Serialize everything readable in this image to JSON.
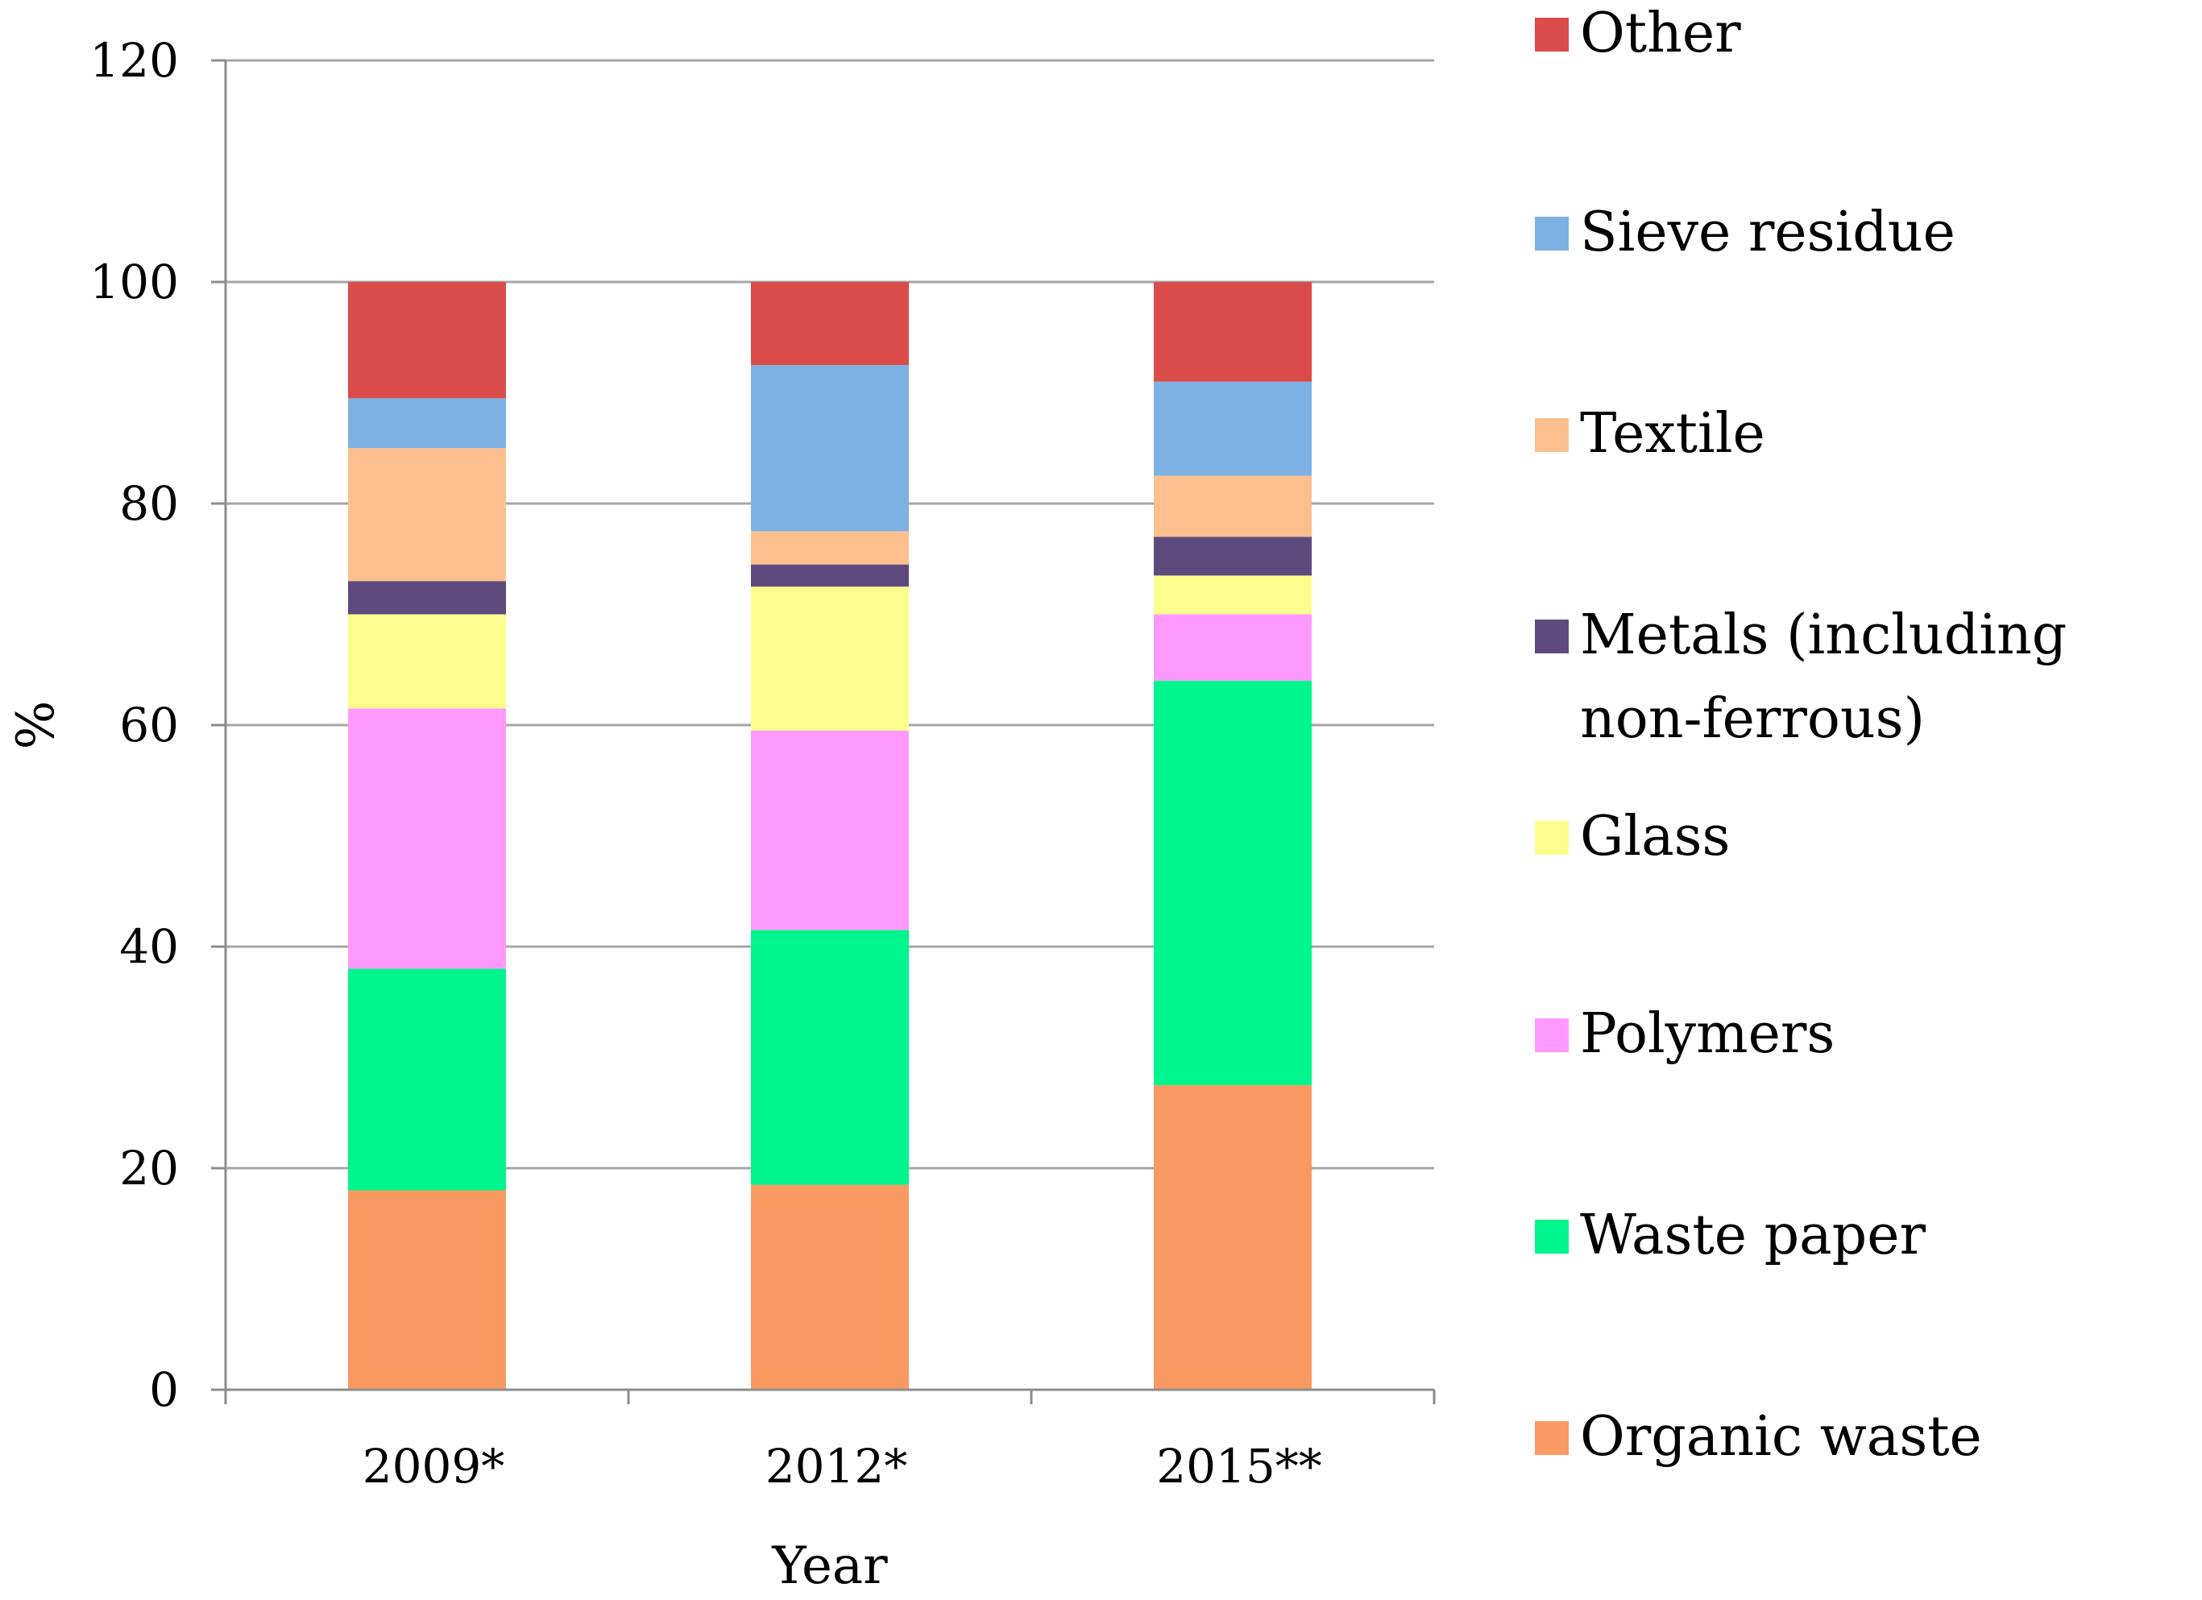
{
  "chart_data": {
    "type": "stacked-bar",
    "categories": [
      "2009*",
      "2012*",
      "2015**"
    ],
    "series": [
      {
        "name": "Organic waste",
        "color": "#F99A62",
        "values": [
          18.0,
          18.5,
          27.5
        ]
      },
      {
        "name": "Waste paper",
        "color": "#00F58C",
        "values": [
          20.0,
          23.0,
          36.5
        ]
      },
      {
        "name": "Polymers",
        "color": "#FF99FF",
        "values": [
          23.5,
          18.0,
          6.0
        ]
      },
      {
        "name": "Glass",
        "color": "#FCFD8C",
        "values": [
          8.5,
          13.0,
          3.5
        ]
      },
      {
        "name": "Metals (including non-ferrous)",
        "color": "#5E4B7E",
        "values": [
          3.0,
          2.0,
          3.5
        ]
      },
      {
        "name": "Textile",
        "color": "#FDBF8E",
        "values": [
          12.0,
          3.0,
          5.5
        ]
      },
      {
        "name": "Sieve residue",
        "color": "#7DB1E3",
        "values": [
          4.5,
          15.0,
          8.5
        ]
      },
      {
        "name": "Other",
        "color": "#DA4C4A",
        "values": [
          10.5,
          7.5,
          9.0
        ]
      }
    ],
    "ylim": [
      0,
      120
    ],
    "yticks": [
      0,
      20,
      40,
      60,
      80,
      100,
      120
    ],
    "xlabel": "Year",
    "ylabel": "%",
    "grid": true,
    "legend_position": "right",
    "legend_order": [
      "Other",
      "Sieve residue",
      "Textile",
      "Metals (including non-ferrous)",
      "Glass",
      "Polymers",
      "Waste paper",
      "Organic waste"
    ]
  }
}
